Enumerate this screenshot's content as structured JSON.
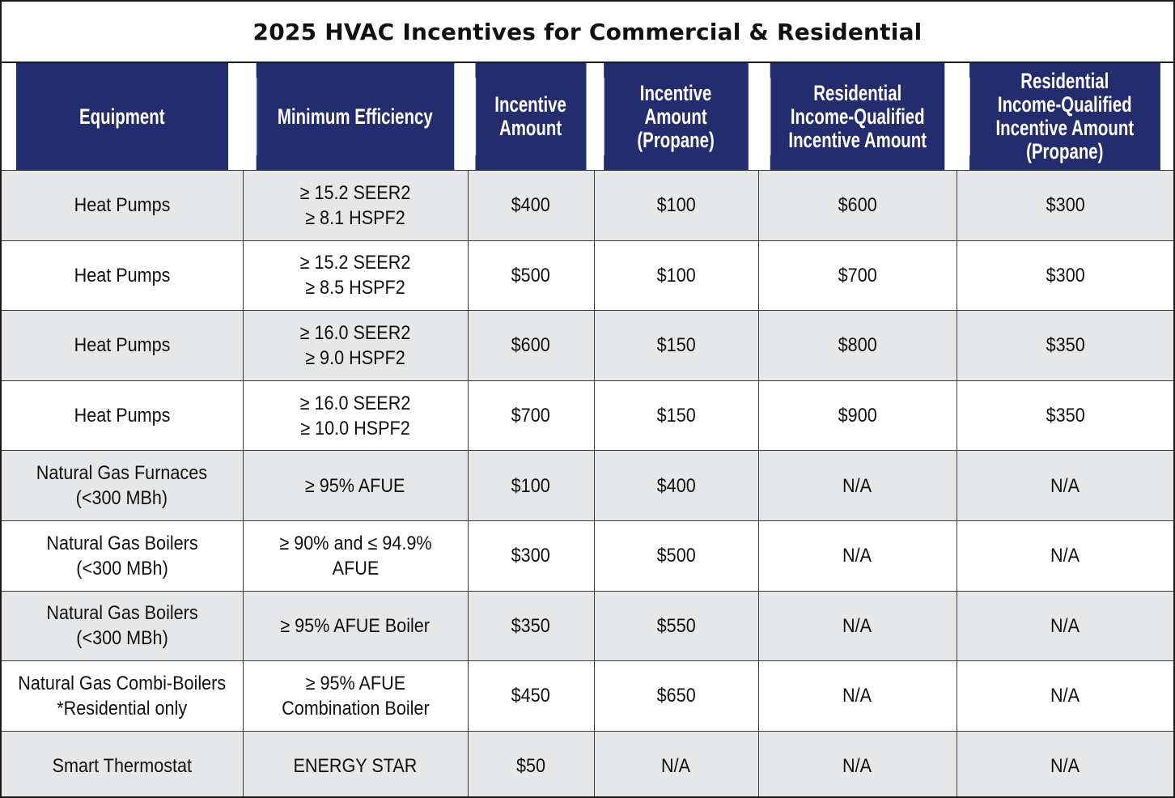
{
  "title": "2025 HVAC Incentives for Commercial & Residential",
  "colors": {
    "header_bg": "#232d6e",
    "header_text": "#ffffff",
    "shaded_row": "#e6e7e8",
    "border": "#3a3a3a"
  },
  "table": {
    "columns": [
      "Equipment",
      "Minimum Efficiency",
      "Incentive\nAmount",
      "Incentive\nAmount\n(Propane)",
      "Residential\nIncome-Qualified\nIncentive Amount",
      "Residential\nIncome-Qualified\nIncentive Amount\n(Propane)"
    ],
    "rows": [
      [
        "Heat Pumps",
        "≥ 15.2 SEER2\n≥ 8.1 HSPF2",
        "$400",
        "$100",
        "$600",
        "$300"
      ],
      [
        "Heat Pumps",
        "≥ 15.2 SEER2\n≥ 8.5 HSPF2",
        "$500",
        "$100",
        "$700",
        "$300"
      ],
      [
        "Heat Pumps",
        "≥ 16.0 SEER2\n≥ 9.0 HSPF2",
        "$600",
        "$150",
        "$800",
        "$350"
      ],
      [
        "Heat Pumps",
        "≥ 16.0 SEER2\n≥ 10.0 HSPF2",
        "$700",
        "$150",
        "$900",
        "$350"
      ],
      [
        "Natural Gas Furnaces\n(<300 MBh)",
        "≥ 95% AFUE",
        "$100",
        "$400",
        "N/A",
        "N/A"
      ],
      [
        "Natural Gas Boilers\n(<300 MBh)",
        "≥ 90% and ≤ 94.9% AFUE",
        "$300",
        "$500",
        "N/A",
        "N/A"
      ],
      [
        "Natural Gas Boilers\n(<300 MBh)",
        "≥ 95% AFUE Boiler",
        "$350",
        "$550",
        "N/A",
        "N/A"
      ],
      [
        "Natural Gas Combi-Boilers\n*Residential only",
        "≥ 95% AFUE\nCombination Boiler",
        "$450",
        "$650",
        "N/A",
        "N/A"
      ],
      [
        "Smart Thermostat",
        "ENERGY STAR",
        "$50",
        "N/A",
        "N/A",
        "N/A"
      ]
    ]
  }
}
